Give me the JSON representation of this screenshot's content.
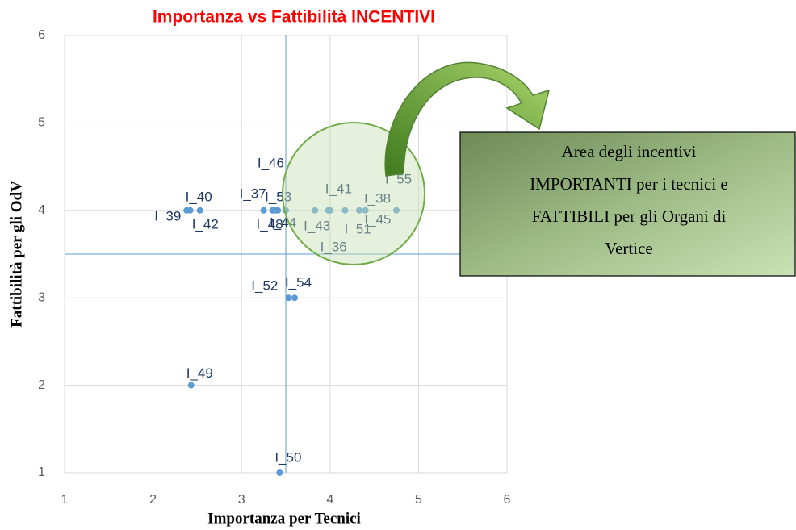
{
  "chart_data": {
    "type": "scatter",
    "title": "Importanza vs Fattibilità INCENTIVI",
    "x_label": "Importanza per Tecnici",
    "y_label": "Fattibilità per gli OdV",
    "xlim": [
      1,
      6
    ],
    "ylim": [
      1,
      6
    ],
    "xticks": [
      1,
      2,
      3,
      4,
      5,
      6
    ],
    "yticks": [
      1,
      2,
      3,
      4,
      5,
      6
    ],
    "grid": true,
    "color": "#5b9bd5",
    "reference_lines": {
      "x": 3.5,
      "y": 3.5
    },
    "labels": [
      "I_39",
      "I_40",
      "I_42",
      "I_37",
      "I_48",
      "I_46",
      "I_53",
      "I_44",
      "I_43",
      "I_36",
      "I_41",
      "I_45",
      "I_38",
      "I_51",
      "I_55",
      "I_52",
      "I_54",
      "I_49",
      "I_50"
    ],
    "x": [
      2.38,
      2.42,
      2.53,
      3.25,
      3.35,
      3.38,
      3.41,
      3.5,
      3.83,
      3.98,
      4.0,
      4.17,
      4.33,
      4.4,
      4.75,
      3.53,
      3.6,
      2.43,
      3.43
    ],
    "y": [
      4,
      4,
      4,
      4,
      4,
      4,
      4,
      4,
      4,
      4,
      4,
      4,
      4,
      4,
      4,
      3,
      3,
      2,
      1
    ],
    "annotation": [
      "Area degli incentivi",
      "IMPORTANTI per i tecnici e",
      "FATTIBILI per gli Organi di",
      "Vertice"
    ]
  }
}
